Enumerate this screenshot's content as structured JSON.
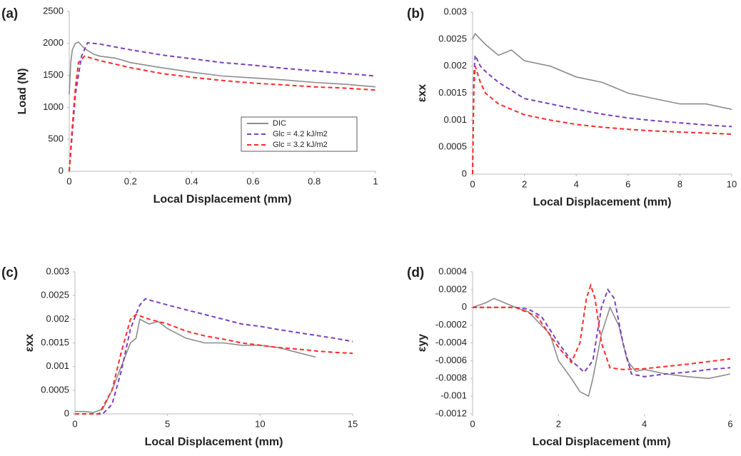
{
  "chart_data": [
    {
      "type": "line",
      "label": "(a)",
      "xlabel": "Local Displacement (mm)",
      "ylabel": "Load (N)",
      "xlim": [
        0,
        1
      ],
      "xticks": [
        0,
        0.2,
        0.4,
        0.6,
        0.8,
        1
      ],
      "ylim": [
        0,
        2500
      ],
      "yticks": [
        0,
        500,
        1000,
        1500,
        2000,
        2500
      ],
      "legend": "lower-right",
      "series": [
        {
          "name": "DIC",
          "color": "#8c8c8c",
          "line_style": "solid",
          "x": [
            0,
            0.005,
            0.01,
            0.02,
            0.03,
            0.05,
            0.08,
            0.1,
            0.15,
            0.2,
            0.3,
            0.4,
            0.5,
            0.6,
            0.7,
            0.8,
            0.9,
            1.0
          ],
          "values": [
            1200,
            1700,
            1900,
            2000,
            2020,
            1920,
            1830,
            1800,
            1770,
            1700,
            1620,
            1550,
            1490,
            1460,
            1430,
            1390,
            1360,
            1320
          ]
        },
        {
          "name": "Glc = 4.2 kJ/m2",
          "color": "#7b3fbf",
          "line_style": "dashed",
          "x": [
            0,
            0.01,
            0.02,
            0.04,
            0.06,
            0.1,
            0.2,
            0.3,
            0.4,
            0.5,
            0.6,
            0.7,
            0.8,
            0.9,
            1.0
          ],
          "values": [
            0,
            600,
            1200,
            1800,
            2010,
            1990,
            1900,
            1820,
            1760,
            1700,
            1660,
            1610,
            1570,
            1530,
            1490
          ]
        },
        {
          "name": "Glc = 3.2 kJ/m2",
          "color": "#ff2a2a",
          "line_style": "dashed",
          "x": [
            0,
            0.01,
            0.02,
            0.03,
            0.05,
            0.1,
            0.2,
            0.3,
            0.4,
            0.5,
            0.6,
            0.7,
            0.8,
            0.9,
            1.0
          ],
          "values": [
            0,
            700,
            1300,
            1700,
            1800,
            1730,
            1620,
            1530,
            1470,
            1420,
            1380,
            1350,
            1320,
            1300,
            1270
          ]
        }
      ]
    },
    {
      "type": "line",
      "label": "(b)",
      "xlabel": "Local Displacement (mm)",
      "ylabel": "εxx",
      "xlim": [
        0,
        10
      ],
      "xticks": [
        0,
        2,
        4,
        6,
        8,
        10
      ],
      "ylim": [
        0,
        0.003
      ],
      "yticks": [
        0,
        0.0005,
        0.001,
        0.0015,
        0.002,
        0.0025,
        0.003
      ],
      "series": [
        {
          "color": "#8c8c8c",
          "line_style": "solid",
          "x": [
            0,
            0.1,
            0.3,
            0.5,
            1,
            1.5,
            2,
            3,
            4,
            5,
            6,
            7,
            8,
            9,
            10
          ],
          "values": [
            0.0025,
            0.0026,
            0.0025,
            0.0024,
            0.0022,
            0.0023,
            0.0021,
            0.002,
            0.0018,
            0.0017,
            0.0015,
            0.0014,
            0.0013,
            0.0013,
            0.0012
          ]
        },
        {
          "color": "#7b3fbf",
          "line_style": "dashed",
          "x": [
            0,
            0.05,
            0.1,
            0.3,
            0.5,
            1,
            2,
            3,
            4,
            5,
            6,
            7,
            8,
            9,
            10
          ],
          "values": [
            0,
            0.0018,
            0.0022,
            0.002,
            0.0019,
            0.0017,
            0.0014,
            0.0013,
            0.0012,
            0.00111,
            0.00104,
            0.00099,
            0.00095,
            0.00091,
            0.00088
          ]
        },
        {
          "color": "#ff2a2a",
          "line_style": "dashed",
          "x": [
            0,
            0.05,
            0.1,
            0.3,
            0.5,
            1,
            2,
            3,
            4,
            5,
            6,
            7,
            8,
            9,
            10
          ],
          "values": [
            0,
            0.0016,
            0.002,
            0.0017,
            0.0015,
            0.0013,
            0.0011,
            0.001,
            0.00092,
            0.00087,
            0.00083,
            0.0008,
            0.00078,
            0.00076,
            0.00074
          ]
        }
      ]
    },
    {
      "type": "line",
      "label": "(c)",
      "xlabel": "Local Displacement (mm)",
      "ylabel": "εxx",
      "xlim": [
        0,
        15
      ],
      "xticks": [
        0,
        5,
        10,
        15
      ],
      "ylim": [
        0,
        0.003
      ],
      "yticks": [
        0,
        0.0005,
        0.001,
        0.0015,
        0.002,
        0.0025,
        0.003
      ],
      "series": [
        {
          "color": "#8c8c8c",
          "line_style": "solid",
          "x": [
            0,
            0.5,
            1,
            1.5,
            2,
            2.5,
            3,
            3.3,
            3.5,
            4,
            4.5,
            5,
            6,
            7,
            8,
            9,
            10,
            11,
            12,
            13
          ],
          "values": [
            5e-05,
            5e-05,
            3e-05,
            0.0001,
            0.0005,
            0.001,
            0.0015,
            0.0016,
            0.002,
            0.0019,
            0.00195,
            0.0018,
            0.0016,
            0.0015,
            0.0015,
            0.00145,
            0.00145,
            0.0014,
            0.0013,
            0.0012
          ]
        },
        {
          "color": "#7b3fbf",
          "line_style": "dashed",
          "x": [
            0,
            1.5,
            2,
            2.5,
            3,
            3.5,
            3.8,
            5,
            6,
            7,
            8,
            9,
            10,
            11,
            12,
            13,
            14,
            15
          ],
          "values": [
            0,
            0,
            0.0002,
            0.0009,
            0.0018,
            0.0023,
            0.00243,
            0.0023,
            0.0022,
            0.0021,
            0.002,
            0.0019,
            0.00185,
            0.00178,
            0.00172,
            0.00166,
            0.0016,
            0.00153
          ]
        },
        {
          "color": "#ff2a2a",
          "line_style": "dashed",
          "x": [
            0,
            1.3,
            2,
            2.5,
            3,
            3.3,
            4,
            5,
            6,
            7,
            8,
            9,
            10,
            11,
            12,
            13,
            14,
            15
          ],
          "values": [
            0,
            0,
            0.0005,
            0.0013,
            0.002,
            0.0021,
            0.002,
            0.0019,
            0.00175,
            0.00165,
            0.00158,
            0.0015,
            0.00145,
            0.0014,
            0.00137,
            0.00133,
            0.0013,
            0.00128
          ]
        }
      ]
    },
    {
      "type": "line",
      "label": "(d)",
      "xlabel": "Local Displacement (mm)",
      "ylabel": "εyy",
      "xlim": [
        0,
        6
      ],
      "xticks": [
        0,
        2,
        4,
        6
      ],
      "ylim": [
        -0.0012,
        0.0004
      ],
      "yticks": [
        -0.0012,
        -0.001,
        -0.0008,
        -0.0006,
        -0.0004,
        -0.0002,
        0,
        0.0002,
        0.0004
      ],
      "series": [
        {
          "color": "#8c8c8c",
          "line_style": "solid",
          "x": [
            0,
            0.3,
            0.5,
            1,
            1.3,
            1.5,
            1.8,
            2,
            2.3,
            2.5,
            2.7,
            2.8,
            3,
            3.2,
            3.4,
            3.6,
            3.8,
            4,
            4.5,
            5,
            5.5,
            6
          ],
          "values": [
            0,
            5e-05,
            0.0001,
            0,
            -5e-05,
            -0.00015,
            -0.0003,
            -0.0006,
            -0.0008,
            -0.00095,
            -0.001,
            -0.0008,
            -0.0003,
            0,
            -0.0002,
            -0.0006,
            -0.00072,
            -0.0007,
            -0.00075,
            -0.00078,
            -0.0008,
            -0.00075
          ]
        },
        {
          "color": "#7b3fbf",
          "line_style": "dashed",
          "x": [
            0,
            1,
            1.3,
            1.6,
            2,
            2.3,
            2.6,
            2.8,
            3,
            3.15,
            3.3,
            3.5,
            3.7,
            4,
            4.5,
            5,
            5.5,
            6
          ],
          "values": [
            0,
            0,
            -2e-05,
            -0.0001,
            -0.0004,
            -0.0006,
            -0.00073,
            -0.0006,
            0,
            0.0002,
            0.0001,
            -0.0004,
            -0.00075,
            -0.00078,
            -0.00075,
            -0.00073,
            -0.0007,
            -0.00068
          ]
        },
        {
          "color": "#ff2a2a",
          "line_style": "dashed",
          "x": [
            0,
            1,
            1.5,
            2,
            2.3,
            2.5,
            2.65,
            2.75,
            2.85,
            3,
            3.2,
            3.5,
            4,
            5,
            6
          ],
          "values": [
            0,
            0,
            -0.0001,
            -0.00045,
            -0.00062,
            -0.0004,
            0.0001,
            0.00025,
            0.0001,
            -0.0004,
            -0.00068,
            -0.0007,
            -0.00069,
            -0.00064,
            -0.00058
          ]
        }
      ]
    }
  ]
}
